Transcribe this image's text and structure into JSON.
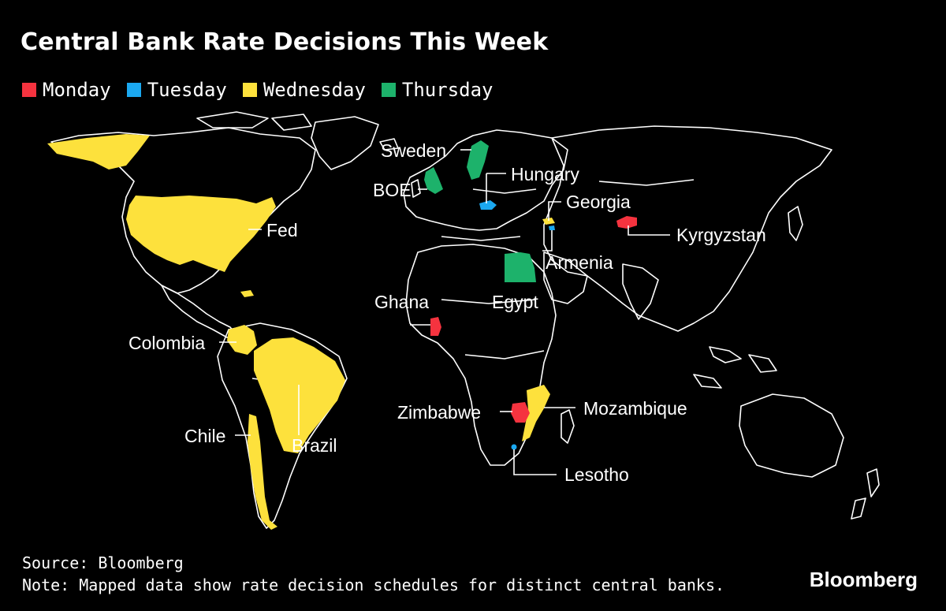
{
  "title": "Central Bank Rate Decisions This Week",
  "legend": [
    {
      "label": "Monday",
      "color": "#f5333f"
    },
    {
      "label": "Tuesday",
      "color": "#1ba8f0"
    },
    {
      "label": "Wednesday",
      "color": "#fde13c"
    },
    {
      "label": "Thursday",
      "color": "#1db26b"
    }
  ],
  "labels": {
    "fed": "Fed",
    "colombia": "Colombia",
    "chile": "Chile",
    "brazil": "Brazil",
    "sweden": "Sweden",
    "boe": "BOE",
    "hungary": "Hungary",
    "georgia": "Georgia",
    "armenia": "Armenia",
    "kyrgyzstan": "Kyrgyzstan",
    "egypt": "Egypt",
    "ghana": "Ghana",
    "zimbabwe": "Zimbabwe",
    "mozambique": "Mozambique",
    "lesotho": "Lesotho"
  },
  "footer": {
    "source": "Source: Bloomberg",
    "note": "Note: Mapped data show rate decision schedules for distinct central banks."
  },
  "brand": "Bloomberg"
}
